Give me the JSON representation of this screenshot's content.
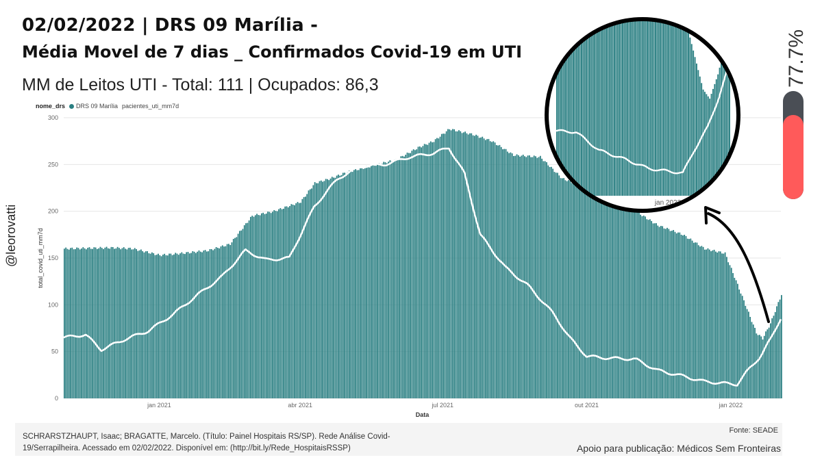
{
  "header": {
    "title_line1": "02/02/2022 | DRS 09 Marília -",
    "title_line2": "Média Movel de 7 dias _ Confirmados Covid-19 em UTI",
    "subtitle": "MM de Leitos UTI - Total: 111 | Ocupados: 86,3"
  },
  "legend": {
    "title": "nome_drs",
    "series1": "DRS 09 Marília",
    "series2": "pacientes_uti_mm7d"
  },
  "author_handle": "@leorovatti",
  "occupancy": {
    "label": "77.7%",
    "fraction": 0.777
  },
  "colors": {
    "bars": "#2a7f82",
    "line": "#ffffff",
    "gauge_bg": "#4a4e55",
    "gauge_fill": "#ff5a5a"
  },
  "footer": {
    "credit": "SCHRARSTZHAUPT, Isaac; BRAGATTE, Marcelo. (Título: Painel Hospitais RS/SP). Rede Análise Covid-19/Serrapilheira. Acessado em 02/02/2022. Disponível em: (http://bit.ly/Rede_HospitaisRSSP)",
    "fonte": "Fonte: SEADE",
    "apoio": "Apoio para publicação: Médicos Sem Fronteiras"
  },
  "chart_data": {
    "type": "bar",
    "ylabel": "total_covid_uti_mm7d",
    "xlabel": "Data",
    "ylim": [
      0,
      300
    ],
    "yticks": [
      "0",
      "50",
      "100",
      "150",
      "200",
      "250",
      "300"
    ],
    "xticks": [
      "jan 2021",
      "abr 2021",
      "jul 2021",
      "out 2021",
      "jan 2022"
    ],
    "x_range": [
      "2020-11-01",
      "2022-02-02"
    ],
    "bars_series": {
      "name": "total_covid_uti_mm7d",
      "points": [
        [
          "2020-11-01",
          160
        ],
        [
          "2020-12-01",
          161
        ],
        [
          "2020-12-15",
          160
        ],
        [
          "2021-01-01",
          153
        ],
        [
          "2021-01-15",
          155
        ],
        [
          "2021-02-01",
          158
        ],
        [
          "2021-02-15",
          165
        ],
        [
          "2021-03-01",
          195
        ],
        [
          "2021-03-15",
          200
        ],
        [
          "2021-04-01",
          210
        ],
        [
          "2021-04-10",
          230
        ],
        [
          "2021-04-20",
          235
        ],
        [
          "2021-05-01",
          242
        ],
        [
          "2021-05-15",
          248
        ],
        [
          "2021-06-01",
          255
        ],
        [
          "2021-06-15",
          268
        ],
        [
          "2021-06-25",
          275
        ],
        [
          "2021-07-05",
          288
        ],
        [
          "2021-07-20",
          282
        ],
        [
          "2021-08-01",
          275
        ],
        [
          "2021-08-15",
          260
        ],
        [
          "2021-09-01",
          258
        ],
        [
          "2021-09-15",
          235
        ],
        [
          "2021-10-01",
          225
        ],
        [
          "2021-10-15",
          215
        ],
        [
          "2021-11-01",
          200
        ],
        [
          "2021-11-15",
          185
        ],
        [
          "2021-12-01",
          175
        ],
        [
          "2021-12-15",
          160
        ],
        [
          "2021-12-28",
          155
        ],
        [
          "2022-01-03",
          130
        ],
        [
          "2022-01-10",
          100
        ],
        [
          "2022-01-17",
          70
        ],
        [
          "2022-01-21",
          64
        ],
        [
          "2022-01-26",
          80
        ],
        [
          "2022-02-02",
          111
        ]
      ]
    },
    "line_series": {
      "name": "pacientes_uti_mm7d",
      "points": [
        [
          "2020-11-01",
          65
        ],
        [
          "2020-11-15",
          68
        ],
        [
          "2020-11-25",
          52
        ],
        [
          "2020-12-10",
          63
        ],
        [
          "2020-12-25",
          72
        ],
        [
          "2021-01-10",
          90
        ],
        [
          "2021-01-25",
          110
        ],
        [
          "2021-02-10",
          130
        ],
        [
          "2021-02-25",
          158
        ],
        [
          "2021-03-10",
          148
        ],
        [
          "2021-03-25",
          150
        ],
        [
          "2021-04-10",
          205
        ],
        [
          "2021-04-25",
          235
        ],
        [
          "2021-05-10",
          248
        ],
        [
          "2021-05-25",
          250
        ],
        [
          "2021-06-10",
          258
        ],
        [
          "2021-06-25",
          262
        ],
        [
          "2021-07-05",
          268
        ],
        [
          "2021-07-15",
          240
        ],
        [
          "2021-07-25",
          175
        ],
        [
          "2021-08-10",
          140
        ],
        [
          "2021-08-25",
          120
        ],
        [
          "2021-09-10",
          90
        ],
        [
          "2021-09-20",
          65
        ],
        [
          "2021-10-01",
          45
        ],
        [
          "2021-10-15",
          43
        ],
        [
          "2021-11-01",
          42
        ],
        [
          "2021-11-15",
          30
        ],
        [
          "2021-12-01",
          24
        ],
        [
          "2021-12-15",
          18
        ],
        [
          "2021-12-28",
          16
        ],
        [
          "2022-01-05",
          15
        ],
        [
          "2022-01-12",
          30
        ],
        [
          "2022-01-20",
          45
        ],
        [
          "2022-01-27",
          65
        ],
        [
          "2022-02-02",
          86
        ]
      ]
    },
    "inset": {
      "label": "jan 2022"
    }
  }
}
